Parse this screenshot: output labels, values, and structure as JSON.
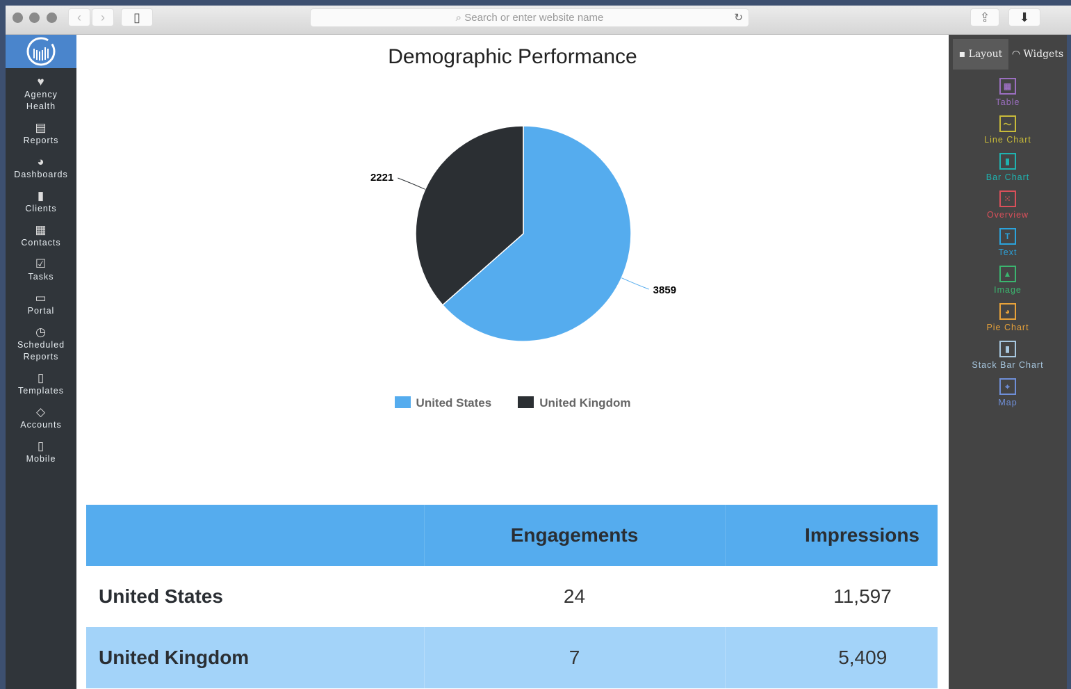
{
  "browser": {
    "url_placeholder": "Search or enter website name"
  },
  "sidebar": {
    "items": [
      {
        "label": "Agency Health",
        "icon": "heart-icon",
        "glyph": "♥"
      },
      {
        "label": "Reports",
        "icon": "report-icon",
        "glyph": "▤"
      },
      {
        "label": "Dashboards",
        "icon": "dashboard-icon",
        "glyph": "◕"
      },
      {
        "label": "Clients",
        "icon": "briefcase-icon",
        "glyph": "▮"
      },
      {
        "label": "Contacts",
        "icon": "contacts-icon",
        "glyph": "▦"
      },
      {
        "label": "Tasks",
        "icon": "checkbox-icon",
        "glyph": "☑"
      },
      {
        "label": "Portal",
        "icon": "portal-icon",
        "glyph": "▭"
      },
      {
        "label": "Scheduled Reports",
        "icon": "clock-icon",
        "glyph": "◷"
      },
      {
        "label": "Templates",
        "icon": "template-icon",
        "glyph": "▯"
      },
      {
        "label": "Accounts",
        "icon": "accounts-icon",
        "glyph": "◇"
      },
      {
        "label": "Mobile",
        "icon": "mobile-icon",
        "glyph": "▯"
      }
    ]
  },
  "right_panel": {
    "tabs": [
      "Layout",
      "Widgets"
    ],
    "widgets": [
      {
        "label": "Table",
        "icon": "table-icon",
        "glyph": "▦",
        "color": "#9b6fc0"
      },
      {
        "label": "Line Chart",
        "icon": "line-chart-icon",
        "glyph": "〜",
        "color": "#c8bb3a"
      },
      {
        "label": "Bar Chart",
        "icon": "bar-chart-icon",
        "glyph": "▮",
        "color": "#1fb3b0"
      },
      {
        "label": "Overview",
        "icon": "overview-icon",
        "glyph": "⁙",
        "color": "#d9505a"
      },
      {
        "label": "Text",
        "icon": "text-icon",
        "glyph": "T",
        "color": "#2ba3dc"
      },
      {
        "label": "Image",
        "icon": "image-icon",
        "glyph": "▲",
        "color": "#3bb56f"
      },
      {
        "label": "Pie Chart",
        "icon": "pie-chart-icon",
        "glyph": "◕",
        "color": "#e8a23a"
      },
      {
        "label": "Stack Bar Chart",
        "icon": "stack-bar-chart-icon",
        "glyph": "▮",
        "color": "#a8c8e0"
      },
      {
        "label": "Map",
        "icon": "map-icon",
        "glyph": "⌖",
        "color": "#6f8fd8"
      }
    ]
  },
  "chart_data": {
    "type": "pie",
    "title": "Demographic Performance",
    "categories": [
      "United States",
      "United Kingdom"
    ],
    "values": [
      3859,
      2221
    ],
    "colors": [
      "#55acee",
      "#2b2f33"
    ],
    "legend_position": "bottom"
  },
  "table": {
    "headers": [
      "",
      "Engagements",
      "Impressions"
    ],
    "rows": [
      [
        "United States",
        "24",
        "11,597"
      ],
      [
        "United Kingdom",
        "7",
        "5,409"
      ]
    ]
  }
}
